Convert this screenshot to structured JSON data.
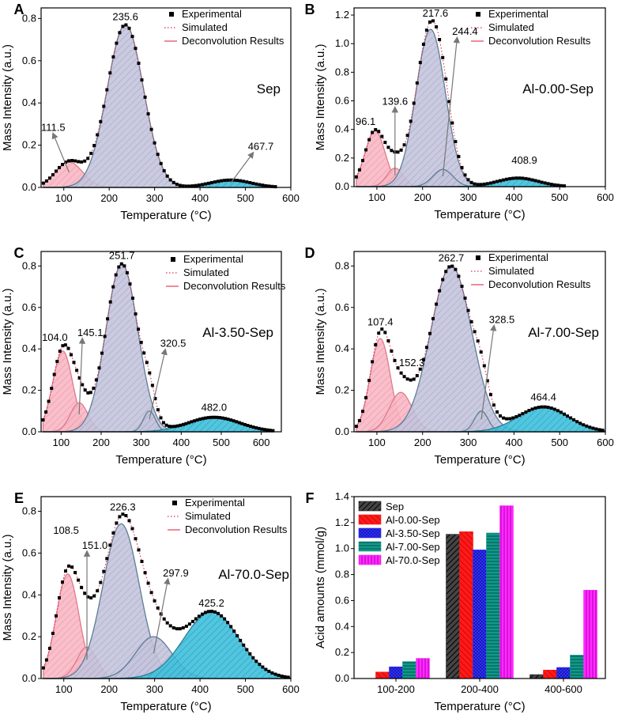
{
  "chart_data": [
    {
      "id": "A",
      "type": "area",
      "panel_letter": "A",
      "label": "Sep",
      "xlabel": "Temperature (°C)",
      "ylabel": "Mass Intensity (a.u.)",
      "xlim": [
        50,
        600
      ],
      "ylim": [
        0,
        0.85
      ],
      "xticks": [
        100,
        200,
        300,
        400,
        500,
        600
      ],
      "yticks": [
        0.0,
        0.2,
        0.4,
        0.6,
        0.8
      ],
      "legend": [
        "Experimental",
        "Simulated",
        "Deconvolution Results"
      ],
      "data_end": 568,
      "peaks": [
        {
          "center": 111.5,
          "height": 0.12,
          "width": 30,
          "fill": "pink",
          "label": "111.5",
          "show_label": true
        },
        {
          "center": 235.6,
          "height": 0.77,
          "width": 40,
          "fill": "lavender",
          "label": "235.6",
          "show_label": true
        },
        {
          "center": 467.7,
          "height": 0.035,
          "width": 45,
          "fill": "cyan",
          "label": "467.7",
          "show_label": true
        }
      ]
    },
    {
      "id": "B",
      "type": "area",
      "panel_letter": "B",
      "label": "Al-0.00-Sep",
      "xlabel": "Temperature (°C)",
      "ylabel": "Mass Intensity (a.u.)",
      "xlim": [
        50,
        600
      ],
      "ylim": [
        0,
        1.25
      ],
      "xticks": [
        100,
        200,
        300,
        400,
        500,
        600
      ],
      "yticks": [
        0.0,
        0.2,
        0.4,
        0.6,
        0.8,
        1.0,
        1.2
      ],
      "legend": [
        "Experimental",
        "Simulated",
        "Deconvolution Results"
      ],
      "data_end": 512,
      "peaks": [
        {
          "center": 96.1,
          "height": 0.39,
          "width": 22,
          "fill": "pink",
          "label": "96.1",
          "show_label": true
        },
        {
          "center": 139.6,
          "height": 0.13,
          "width": 18,
          "fill": "pink",
          "label": "139.6",
          "show_label": true
        },
        {
          "center": 217.6,
          "height": 1.1,
          "width": 32,
          "fill": "lavender",
          "label": "217.6",
          "show_label": true
        },
        {
          "center": 244.4,
          "height": 0.12,
          "width": 22,
          "fill": "lavender",
          "label": "244.4",
          "show_label": true
        },
        {
          "center": 408.9,
          "height": 0.06,
          "width": 45,
          "fill": "cyan",
          "label": "408.9",
          "show_label": true
        }
      ]
    },
    {
      "id": "C",
      "type": "area",
      "panel_letter": "C",
      "label": "Al-3.50-Sep",
      "xlabel": "Temperature (°C)",
      "ylabel": "Mass Intensity (a.u.)",
      "xlim": [
        50,
        650
      ],
      "ylim": [
        0,
        0.87
      ],
      "xticks": [
        100,
        200,
        300,
        400,
        500,
        600
      ],
      "yticks": [
        0.0,
        0.2,
        0.4,
        0.6,
        0.8
      ],
      "legend": [
        "Experimental",
        "Simulated",
        "Deconvolution Results"
      ],
      "data_end": 630,
      "peaks": [
        {
          "center": 104.0,
          "height": 0.39,
          "width": 25,
          "fill": "pink",
          "label": "104.0",
          "show_label": true
        },
        {
          "center": 145.1,
          "height": 0.14,
          "width": 22,
          "fill": "pink",
          "label": "145.1",
          "show_label": true
        },
        {
          "center": 251.7,
          "height": 0.81,
          "width": 40,
          "fill": "lavender",
          "label": "251.7",
          "show_label": true
        },
        {
          "center": 320.5,
          "height": 0.1,
          "width": 15,
          "fill": "lavender",
          "label": "320.5",
          "show_label": true
        },
        {
          "center": 482.0,
          "height": 0.07,
          "width": 65,
          "fill": "cyan",
          "label": "482.0",
          "show_label": true
        }
      ]
    },
    {
      "id": "D",
      "type": "area",
      "panel_letter": "D",
      "label": "Al-7.00-Sep",
      "xlabel": "Temperature (°C)",
      "ylabel": "Mass Intensity (a.u.)",
      "xlim": [
        50,
        600
      ],
      "ylim": [
        0,
        0.87
      ],
      "xticks": [
        100,
        200,
        300,
        400,
        500,
        600
      ],
      "yticks": [
        0.0,
        0.2,
        0.4,
        0.6,
        0.8
      ],
      "legend": [
        "Experimental",
        "Simulated",
        "Deconvolution Results"
      ],
      "data_end": 600,
      "peaks": [
        {
          "center": 107.4,
          "height": 0.45,
          "width": 22,
          "fill": "pink",
          "label": "107.4",
          "show_label": true
        },
        {
          "center": 152.3,
          "height": 0.19,
          "width": 25,
          "fill": "pink",
          "label": "152.3",
          "show_label": true
        },
        {
          "center": 262.7,
          "height": 0.8,
          "width": 45,
          "fill": "lavender",
          "label": "262.7",
          "show_label": true
        },
        {
          "center": 328.5,
          "height": 0.1,
          "width": 15,
          "fill": "lavender",
          "label": "328.5",
          "show_label": true
        },
        {
          "center": 464.4,
          "height": 0.12,
          "width": 55,
          "fill": "cyan",
          "label": "464.4",
          "show_label": true
        }
      ]
    },
    {
      "id": "E",
      "type": "area",
      "panel_letter": "E",
      "label": "Al-70.0-Sep",
      "xlabel": "Temperature (°C)",
      "ylabel": "Mass Intensity (a.u.)",
      "xlim": [
        50,
        600
      ],
      "ylim": [
        0,
        0.87
      ],
      "xticks": [
        100,
        200,
        300,
        400,
        500,
        600
      ],
      "yticks": [
        0.0,
        0.2,
        0.4,
        0.6,
        0.8
      ],
      "legend": [
        "Experimental",
        "Simulated",
        "Deconvolution Results"
      ],
      "data_end": 600,
      "peaks": [
        {
          "center": 108.5,
          "height": 0.5,
          "width": 25,
          "fill": "pink",
          "label": "108.5",
          "show_label": true
        },
        {
          "center": 151.0,
          "height": 0.15,
          "width": 22,
          "fill": "pink",
          "label": "151.0",
          "show_label": true
        },
        {
          "center": 226.3,
          "height": 0.74,
          "width": 40,
          "fill": "lavender",
          "label": "226.3",
          "show_label": true
        },
        {
          "center": 297.9,
          "height": 0.2,
          "width": 40,
          "fill": "lavender",
          "label": "297.9",
          "show_label": true
        },
        {
          "center": 425.2,
          "height": 0.32,
          "width": 60,
          "fill": "cyan",
          "label": "425.2",
          "show_label": true
        }
      ]
    },
    {
      "id": "F",
      "type": "bar",
      "panel_letter": "F",
      "xlabel": "Temperature (°C)",
      "ylabel": "Acid amounts (mmol/g)",
      "ylim": [
        0,
        1.4
      ],
      "yticks": [
        0.0,
        0.2,
        0.4,
        0.6,
        0.8,
        1.0,
        1.2,
        1.4
      ],
      "categories": [
        "100-200",
        "200-400",
        "400-600"
      ],
      "series": [
        {
          "name": "Sep",
          "color": "#222222",
          "pattern": "hatch-a",
          "values": [
            0.0,
            1.11,
            0.03
          ]
        },
        {
          "name": "Al-0.00-Sep",
          "color": "#ff1a1a",
          "pattern": "hatch-b",
          "values": [
            0.05,
            1.13,
            0.065
          ]
        },
        {
          "name": "Al-3.50-Sep",
          "color": "#2b2bff",
          "pattern": "hatch-c",
          "values": [
            0.09,
            0.99,
            0.085
          ]
        },
        {
          "name": "Al-7.00-Sep",
          "color": "#0f9a8a",
          "pattern": "hatch-d",
          "values": [
            0.13,
            1.12,
            0.18
          ]
        },
        {
          "name": "Al-70.0-Sep",
          "color": "#ff2bff",
          "pattern": "hatch-e",
          "values": [
            0.155,
            1.33,
            0.68
          ]
        }
      ]
    }
  ]
}
